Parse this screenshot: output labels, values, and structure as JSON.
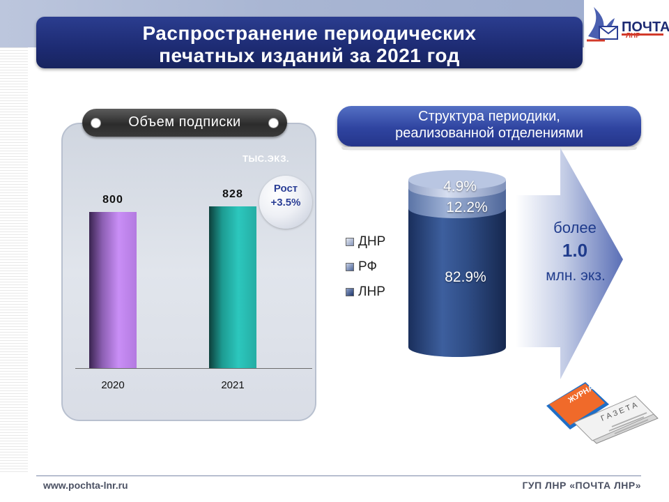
{
  "title_line1": "Распространение  периодических",
  "title_line2": "печатных изданий за 2021 год",
  "logo": {
    "text": "ПОЧТА",
    "subtext": "ЛНР",
    "icon": "dove-envelope-icon"
  },
  "left_panel": {
    "pill_label": "Объем  подписки",
    "units": "ТЫС.ЭКЗ.",
    "growth_line1": "Рост",
    "growth_line2": "+3.5%"
  },
  "right_panel": {
    "structure_title_line1": "Структура периодики,",
    "structure_title_line2": "реализованной отделениями",
    "arrow_line1": "более",
    "arrow_line2": "1.0",
    "arrow_line3": "млн. экз.",
    "newspaper_icon": "newspaper-magazine-icon",
    "magazine_label": "ЖУРНАЛ",
    "newspaper_label": "ГАЗЕТА"
  },
  "chart_data": [
    {
      "type": "bar",
      "categories": [
        "2020",
        "2021"
      ],
      "values": [
        800,
        828
      ],
      "value_labels": [
        "800",
        "828"
      ],
      "colors": [
        "#c98ef6",
        "#2cc7bd"
      ],
      "title": "Объем  подписки",
      "ylabel": "ТЫС.ЭКЗ.",
      "ylim": [
        0,
        1000
      ],
      "grid": false
    },
    {
      "type": "bar",
      "subtype": "stacked-cylinder-100",
      "title": "Структура периодики, реализованной отделениями",
      "categories": [
        "ЛНР",
        "РФ",
        "ДНР"
      ],
      "values": [
        82.9,
        12.2,
        4.9
      ],
      "value_labels": [
        "82.9%",
        "12.2%",
        "4.9%"
      ],
      "colors": [
        "#27457f",
        "#5a76a8",
        "#93a4c7"
      ],
      "legend": [
        "ДНР",
        "РФ",
        "ЛНР"
      ],
      "legend_position": "left"
    }
  ],
  "footer": {
    "left": "www.pochta-lnr.ru",
    "right": "ГУП ЛНР «ПОЧТА ЛНР»"
  }
}
